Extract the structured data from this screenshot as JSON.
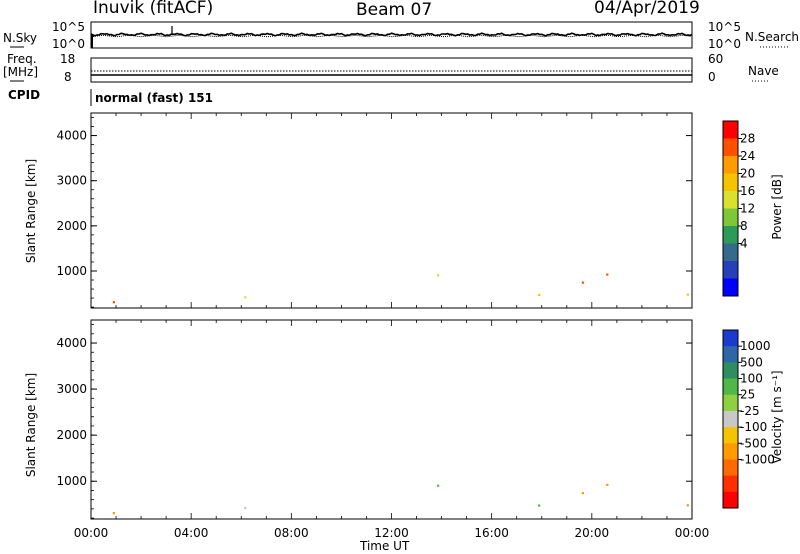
{
  "header": {
    "station": "Inuvik (fitACF)",
    "beam": "Beam 07",
    "date": "04/Apr/2019"
  },
  "left_labels": {
    "nsky": "N.Sky",
    "freq": "Freq.",
    "freq_unit": "[MHz]",
    "cpid": "CPID"
  },
  "right_labels": {
    "nsearch": "N.Search",
    "nave": "Nave"
  },
  "cpid_text": "normal (fast) 151",
  "chart_data": [
    {
      "type": "line",
      "name": "noise",
      "y_left_ticks": [
        "10^5",
        "10^0"
      ],
      "y_right_ticks": [
        "10^5",
        "10^0"
      ]
    },
    {
      "type": "line",
      "name": "freq-nave",
      "y_left_ticks": [
        "18",
        "8"
      ],
      "y_right_ticks": [
        "60",
        "0"
      ]
    },
    {
      "type": "heatmap",
      "ylabel": "Slant Range [km]",
      "y_ticks": [
        1000,
        2000,
        3000,
        4000
      ],
      "ylim": [
        180,
        4500
      ],
      "colorbar_label": "Power [dB]",
      "colorbar_ticks": [
        "28",
        "24",
        "20",
        "16",
        "12",
        "8",
        "4"
      ],
      "colors": [
        "#ff0000",
        "#ff5000",
        "#ff9a00",
        "#f5c400",
        "#d8e030",
        "#7cc838",
        "#2e9a5a",
        "#356a8c",
        "#2540b8",
        "#0000ff"
      ]
    },
    {
      "type": "heatmap",
      "ylabel": "Slant Range [km]",
      "y_ticks": [
        1000,
        2000,
        3000,
        4000
      ],
      "ylim": [
        180,
        4500
      ],
      "colorbar_label": "Velocity [m s⁻¹]",
      "colorbar_ticks": [
        "1000",
        "500",
        "100",
        "25",
        "-25",
        "-100",
        "-500",
        "-1000"
      ],
      "colors": [
        "#1a3ad0",
        "#2f66a8",
        "#2f8e60",
        "#4fb848",
        "#8ed040",
        "#c8c8c8",
        "#f5c400",
        "#ff9a00",
        "#ff6a00",
        "#ff3000",
        "#ff0000"
      ]
    }
  ],
  "x_axis": {
    "ticks": [
      "00:00",
      "04:00",
      "08:00",
      "12:00",
      "16:00",
      "20:00",
      "00:00"
    ],
    "label": "Time UT"
  }
}
